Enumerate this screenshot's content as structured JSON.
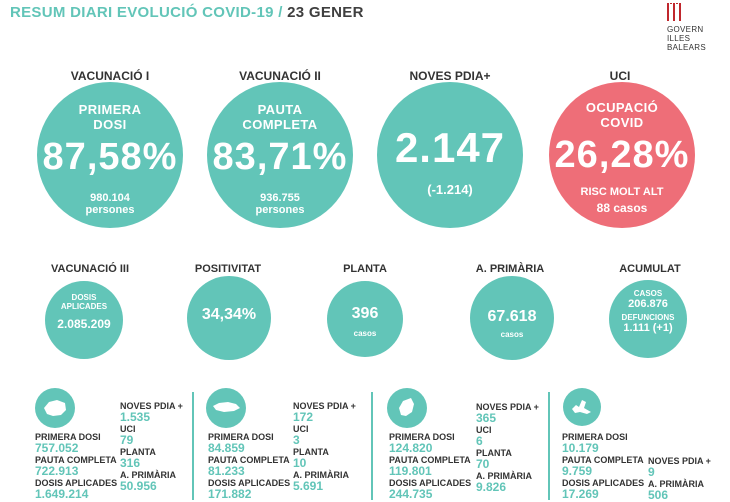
{
  "title": {
    "main": "RESUM DIARI EVOLUCIÓ COVID-19 /",
    "date": "23 GENER"
  },
  "logo": {
    "line1": "GOVERN",
    "line2": "ILLES",
    "line3": "BALEARS"
  },
  "top": [
    {
      "header": "VACUNACIÓ I",
      "label1": "PRIMERA",
      "label2": "DOSI",
      "value": "87,58%",
      "sub1": "980.104",
      "sub2": "persones"
    },
    {
      "header": "VACUNACIÓ II",
      "label1": "PAUTA",
      "label2": "COMPLETA",
      "value": "83,71%",
      "sub1": "936.755",
      "sub2": "persones"
    },
    {
      "header": "NOVES PDIA+",
      "value": "2.147",
      "sub1": "(-1.214)"
    },
    {
      "header": "UCI",
      "label1": "OCUPACIÓ",
      "label2": "COVID",
      "value": "26,28%",
      "sub1": "RISC MOLT ALT",
      "sub2": "88 casos"
    }
  ],
  "middle": [
    {
      "header": "VACUNACIÓ III",
      "label1": "DOSIS",
      "label2": "APLICADES",
      "value": "2.085.209"
    },
    {
      "header": "POSITIVITAT",
      "value": "34,34%"
    },
    {
      "header": "PLANTA",
      "value": "396",
      "sub": "casos"
    },
    {
      "header": "A. PRIMÀRIA",
      "value": "67.618",
      "sub": "casos"
    },
    {
      "header": "ACUMULAT",
      "l1": "CASOS",
      "v1": "206.876",
      "l2": "DEFUNCIONS",
      "v2": "1.111 (+1)"
    }
  ],
  "islands": [
    {
      "name": "mallorca-icon",
      "primera_dosi_label": "PRIMERA DOSI",
      "primera_dosi": "757.052",
      "pauta_label": "PAUTA COMPLETA",
      "pauta": "722.913",
      "dosis_label": "DOSIS APLICADES",
      "dosis": "1.649.214",
      "pdia_label": "NOVES PDIA +",
      "pdia": "1.535",
      "uci_label": "UCI",
      "uci": "79",
      "planta_label": "PLANTA",
      "planta": "316",
      "primaria_label": "A. PRIMÀRIA",
      "primaria": "50.956"
    },
    {
      "name": "menorca-icon",
      "primera_dosi_label": "PRIMERA DOSI",
      "primera_dosi": "84.859",
      "pauta_label": "PAUTA COMPLETA",
      "pauta": "81.233",
      "dosis_label": "DOSIS APLICADES",
      "dosis": "171.882",
      "pdia_label": "NOVES PDIA +",
      "pdia": "172",
      "uci_label": "UCI",
      "uci": "3",
      "planta_label": "PLANTA",
      "planta": "10",
      "primaria_label": "A. PRIMÀRIA",
      "primaria": "5.691"
    },
    {
      "name": "eivissa-icon",
      "primera_dosi_label": "PRIMERA DOSI",
      "primera_dosi": "124.820",
      "pauta_label": "PAUTA COMPLETA",
      "pauta": "119.801",
      "dosis_label": "DOSIS APLICADES",
      "dosis": "244.735",
      "pdia_label": "NOVES PDIA +",
      "pdia": "365",
      "uci_label": "UCI",
      "uci": "6",
      "planta_label": "PLANTA",
      "planta": "70",
      "primaria_label": "A. PRIMÀRIA",
      "primaria": "9.826"
    },
    {
      "name": "formentera-icon",
      "primera_dosi_label": "PRIMERA DOSI",
      "primera_dosi": "10.179",
      "pauta_label": "PAUTA COMPLETA",
      "pauta": "9.759",
      "dosis_label": "DOSIS APLICADES",
      "dosis": "17.269",
      "pdia_label": "NOVES PDIA +",
      "pdia": "9",
      "primaria_label": "A. PRIMÀRIA",
      "primaria": "506"
    }
  ],
  "colors": {
    "teal": "#62c5b8",
    "red": "#ee6e78",
    "dark": "#3a3a3a",
    "logo_red": "#c0272d"
  }
}
